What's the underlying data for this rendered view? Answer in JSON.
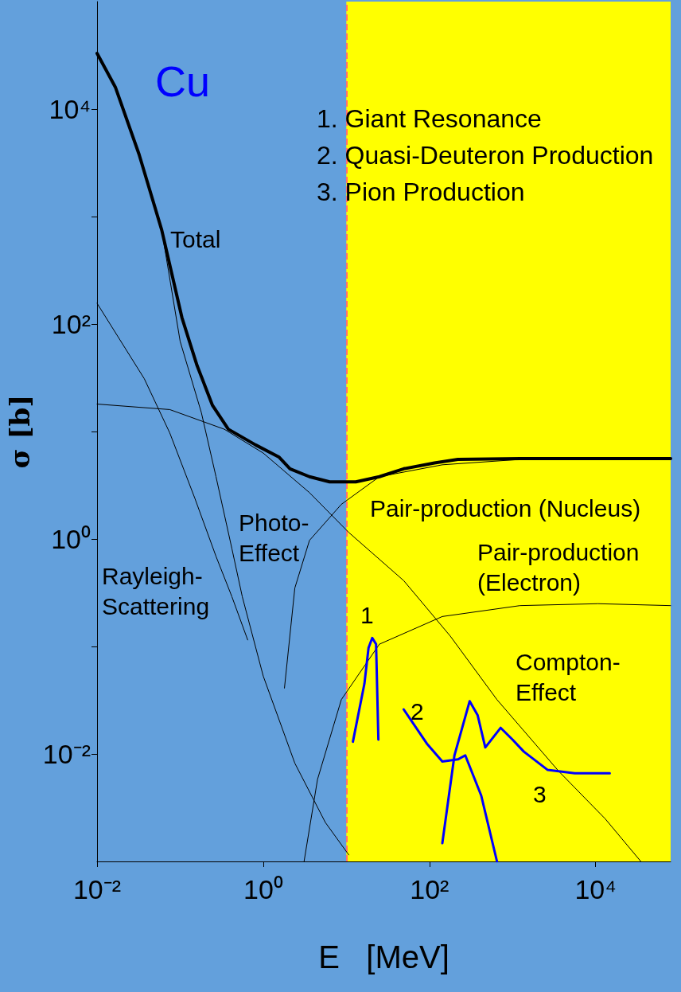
{
  "chart_data": {
    "type": "line",
    "title": "Cu",
    "xlabel": "E   [MeV]",
    "ylabel": "σ [b]",
    "log": "xy",
    "marker": "none",
    "line_style": "solid",
    "xlim": [
      0.01,
      80000
    ],
    "ylim": [
      0.001,
      100000
    ],
    "xticks": [
      {
        "value": 0.01,
        "label": "10⁻²"
      },
      {
        "value": 1,
        "label": "10⁰"
      },
      {
        "value": 100,
        "label": "10²"
      },
      {
        "value": 10000,
        "label": "10⁴"
      }
    ],
    "yticks": [
      {
        "value": 0.01,
        "label": "10⁻²"
      },
      {
        "value": 0.1,
        "label": null
      },
      {
        "value": 1,
        "label": "10⁰"
      },
      {
        "value": 10,
        "label": null
      },
      {
        "value": 100,
        "label": "10²"
      },
      {
        "value": 1000,
        "label": null
      },
      {
        "value": 10000,
        "label": "10⁴"
      }
    ],
    "bands": [
      {
        "axis": "x",
        "from": 10,
        "to": 80000,
        "color": "#ffff00"
      }
    ],
    "ref_lines": [
      {
        "axis": "x",
        "value": 10,
        "color": "#ff7070",
        "line_style": "dashed"
      }
    ],
    "series": [
      {
        "color": "#000000",
        "x": [
          0.01,
          0.0166,
          0.032,
          0.06,
          0.105,
          0.16,
          0.245,
          0.38,
          0.81,
          1.54,
          2.1,
          3.6,
          6.3,
          13,
          25,
          49,
          115,
          220,
          1230,
          80000
        ],
        "values": [
          33000,
          16000,
          3800,
          750,
          115,
          41,
          17.5,
          10.5,
          7.5,
          5.8,
          4.5,
          3.8,
          3.4,
          3.4,
          3.8,
          4.5,
          5.1,
          5.5,
          5.6,
          5.6
        ]
      },
      {
        "color": "#000000",
        "x": [
          0.01,
          0.037,
          0.075,
          0.15,
          0.27,
          0.42,
          0.65
        ],
        "values": [
          156,
          31,
          9.7,
          2.4,
          0.69,
          0.29,
          0.115
        ]
      },
      {
        "color": "#000000",
        "x": [
          0.01,
          0.0166,
          0.032,
          0.06,
          0.1,
          0.18,
          0.27,
          0.42,
          0.56,
          1,
          2.4,
          5.6,
          10.7
        ],
        "values": [
          33000,
          16000,
          3800,
          750,
          69,
          15,
          3.8,
          0.81,
          0.29,
          0.053,
          0.0082,
          0.0023,
          0.00115
        ]
      },
      {
        "color": "#000000",
        "x": [
          0.01,
          0.075,
          0.34,
          1,
          3.6,
          10.7,
          49,
          178,
          650,
          3600,
          13000,
          35000
        ],
        "values": [
          18,
          16,
          10.5,
          6.3,
          2.7,
          1.15,
          0.41,
          0.125,
          0.032,
          0.0069,
          0.0025,
          0.001
        ]
      },
      {
        "color": "#000000",
        "x": [
          1.8,
          2.4,
          3.6,
          8.7,
          25,
          143,
          1230,
          80000
        ],
        "values": [
          0.041,
          0.35,
          0.97,
          2.1,
          3.8,
          4.9,
          5.5,
          5.6
        ]
      },
      {
        "color": "#000000",
        "x": [
          3.1,
          4.5,
          8.7,
          25,
          143,
          1230,
          10700,
          80000
        ],
        "values": [
          0.001,
          0.0058,
          0.032,
          0.105,
          0.19,
          0.24,
          0.25,
          0.24
        ]
      },
      {
        "color": "#0000ff",
        "x": [
          12,
          16.5,
          18.5,
          20.5,
          22.8,
          24.3
        ],
        "values": [
          0.013,
          0.045,
          0.097,
          0.12,
          0.105,
          0.0136
        ]
      },
      {
        "color": "#0000ff",
        "x": [
          49,
          93,
          143,
          220,
          270,
          420,
          650
        ],
        "values": [
          0.026,
          0.0125,
          0.0085,
          0.0089,
          0.0097,
          0.0041,
          0.001
        ]
      },
      {
        "color": "#0000ff",
        "x": [
          143,
          200,
          305,
          380,
          470,
          720,
          1000,
          1370,
          2650,
          5600,
          14800
        ],
        "values": [
          0.00148,
          0.0097,
          0.031,
          0.023,
          0.0115,
          0.0175,
          0.0136,
          0.0105,
          0.0071,
          0.0066,
          0.0066
        ]
      }
    ],
    "annotations": [
      "1. Giant Resonance\n2. Quasi-Deuteron Production\n3. Pion Production",
      "Total",
      "Photo-\nEffect",
      "Rayleigh-\nScattering",
      "Pair-production (Nucleus)",
      "Pair-production\n(Electron)",
      "Compton-\nEffect",
      "1",
      "2",
      "3"
    ]
  }
}
